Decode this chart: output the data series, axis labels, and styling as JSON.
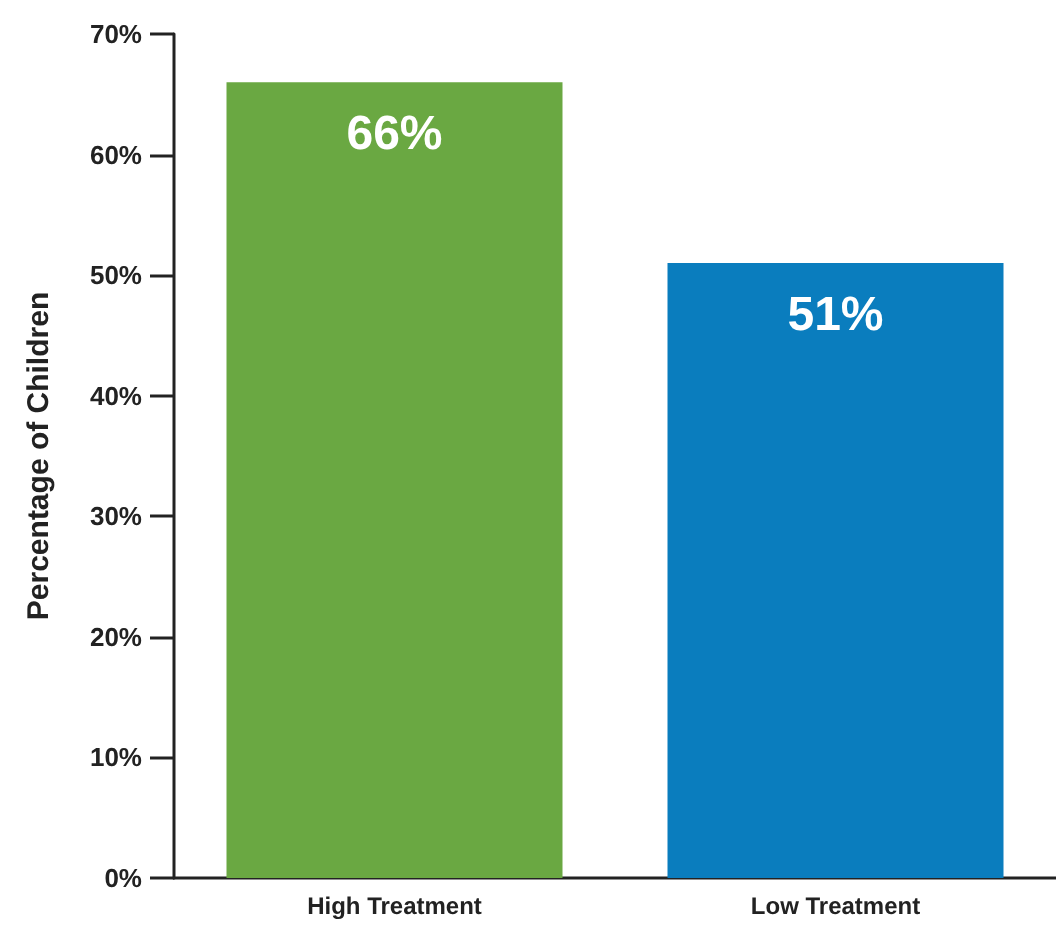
{
  "chart_data": {
    "type": "bar",
    "ylabel": "Percentage of Children",
    "categories": [
      "High Treatment",
      "Low Treatment"
    ],
    "values": [
      66,
      51
    ],
    "colors": [
      "#6aa842",
      "#0a7dbe"
    ],
    "value_labels": [
      "66%",
      "51%"
    ],
    "ylim": [
      0,
      70
    ],
    "yticks": [
      {
        "value": 0,
        "label": "0%"
      },
      {
        "value": 10,
        "label": "10%"
      },
      {
        "value": 20,
        "label": "20%"
      },
      {
        "value": 30,
        "label": "30%"
      },
      {
        "value": 40,
        "label": "40%"
      },
      {
        "value": 50,
        "label": "50%"
      },
      {
        "value": 60,
        "label": "60%"
      },
      {
        "value": 70,
        "label": "70%"
      }
    ],
    "grid": false
  }
}
